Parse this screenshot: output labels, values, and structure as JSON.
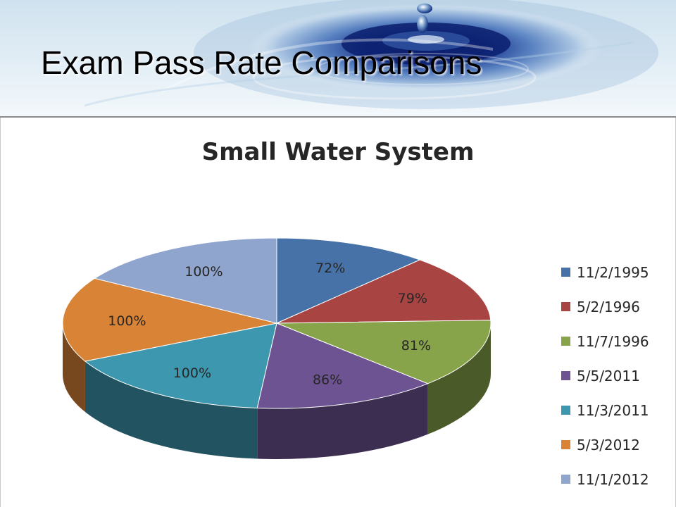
{
  "slide": {
    "title": "Exam Pass Rate Comparisons",
    "background_image": "water-droplet-ripple"
  },
  "chart_data": {
    "type": "pie",
    "style": "3d-pie",
    "title": "Small Water System",
    "labels": [
      "11/2/1995",
      "5/2/1996",
      "11/7/1996",
      "5/5/2011",
      "11/3/2011",
      "5/3/2012",
      "11/1/2012"
    ],
    "values": [
      72,
      79,
      81,
      86,
      100,
      100,
      100
    ],
    "data_labels": [
      "72%",
      "79%",
      "81%",
      "86%",
      "100%",
      "100%",
      "100%"
    ],
    "colors": [
      "#4672A8",
      "#A84442",
      "#88A44A",
      "#6D5392",
      "#3D97AE",
      "#D98336",
      "#8FA5CE"
    ],
    "legend": "right"
  }
}
